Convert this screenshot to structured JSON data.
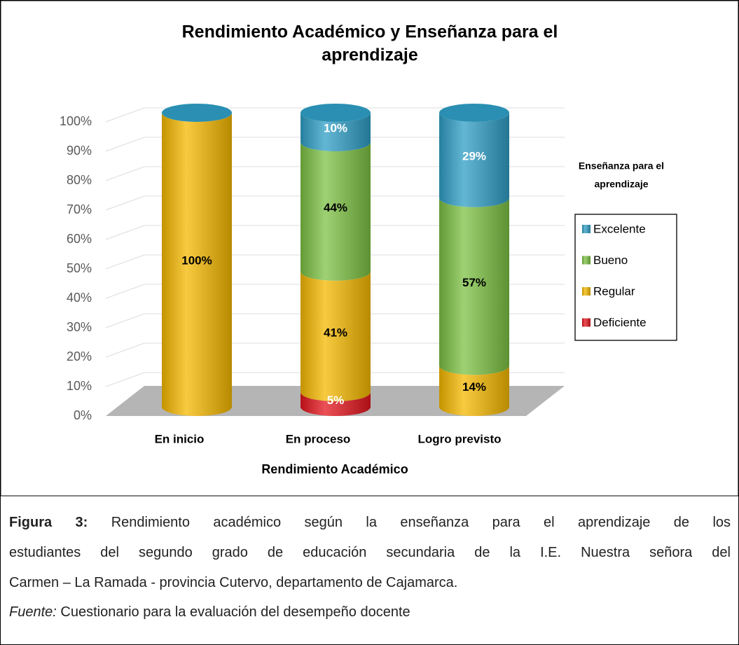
{
  "chart_data": {
    "type": "bar",
    "stacked": true,
    "title": "Rendimiento Académico y Enseñanza para el aprendizaje",
    "x_label": "Rendimiento Académico",
    "legend_title": "Enseñanza para el aprendizaje",
    "legend_position": "right",
    "categories": [
      "En inicio",
      "En proceso",
      "Logro previsto"
    ],
    "series": [
      {
        "name": "Deficiente",
        "color": "#e3151d",
        "values": [
          0,
          5,
          0
        ],
        "value_labels": [
          null,
          "5%",
          null
        ]
      },
      {
        "name": "Regular",
        "color": "#f5b800",
        "values": [
          100,
          41,
          14
        ],
        "value_labels": [
          "100%",
          "41%",
          "14%"
        ]
      },
      {
        "name": "Bueno",
        "color": "#7cc143",
        "values": [
          0,
          44,
          57
        ],
        "value_labels": [
          null,
          "44%",
          "57%"
        ]
      },
      {
        "name": "Excelente",
        "color": "#2f9fc6",
        "values": [
          0,
          10,
          29
        ],
        "value_labels": [
          null,
          "10%",
          "29%"
        ]
      }
    ],
    "ylim": [
      0,
      100
    ],
    "yticks": [
      {
        "value": 0,
        "label": "0%"
      },
      {
        "value": 10,
        "label": "10%"
      },
      {
        "value": 20,
        "label": "20%"
      },
      {
        "value": 30,
        "label": "30%"
      },
      {
        "value": 40,
        "label": "40%"
      },
      {
        "value": 50,
        "label": "50%"
      },
      {
        "value": 60,
        "label": "60%"
      },
      {
        "value": 70,
        "label": "70%"
      },
      {
        "value": 80,
        "label": "80%"
      },
      {
        "value": 90,
        "label": "90%"
      },
      {
        "value": 100,
        "label": "100%"
      }
    ],
    "grid": true
  },
  "caption": {
    "label": "Figura 3:",
    "lines": [
      "Rendimiento académico según la enseñanza para el aprendizaje de los",
      "estudiantes del segundo grado de educación secundaria de la I.E. Nuestra señora del",
      "Carmen – La Ramada - provincia Cutervo, departamento de Cajamarca."
    ]
  },
  "source": {
    "label": "Fuente:",
    "text": "Cuestionario para la evaluación del desempeño docente"
  }
}
